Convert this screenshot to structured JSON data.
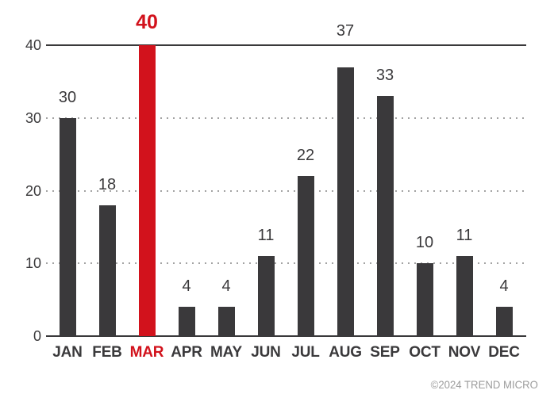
{
  "chart_data": {
    "type": "bar",
    "categories": [
      "JAN",
      "FEB",
      "MAR",
      "APR",
      "MAY",
      "JUN",
      "JUL",
      "AUG",
      "SEP",
      "OCT",
      "NOV",
      "DEC"
    ],
    "values": [
      30,
      18,
      40,
      4,
      4,
      11,
      22,
      37,
      33,
      10,
      11,
      4
    ],
    "highlight": {
      "index": 2,
      "category": "MAR",
      "value": 40
    },
    "title": "",
    "xlabel": "",
    "ylabel": "",
    "ylim": [
      0,
      40
    ],
    "yticks": [
      0,
      10,
      20,
      30,
      40
    ],
    "grid": {
      "solid_at": [
        0,
        40
      ],
      "dotted_at": [
        10,
        20,
        30
      ]
    },
    "legend": null,
    "data_labels": "above-bars",
    "label_dy": {
      "7": -20
    }
  },
  "footer": {
    "copyright": "©2024 TREND MICRO"
  },
  "colors": {
    "bar": "#3a393b",
    "highlight": "#d2121c",
    "text": "#3a393b",
    "line": "#3a393b",
    "grid_dotted": "#a3a3a3",
    "copyright": "#9c9c9c",
    "background": "#ffffff"
  }
}
